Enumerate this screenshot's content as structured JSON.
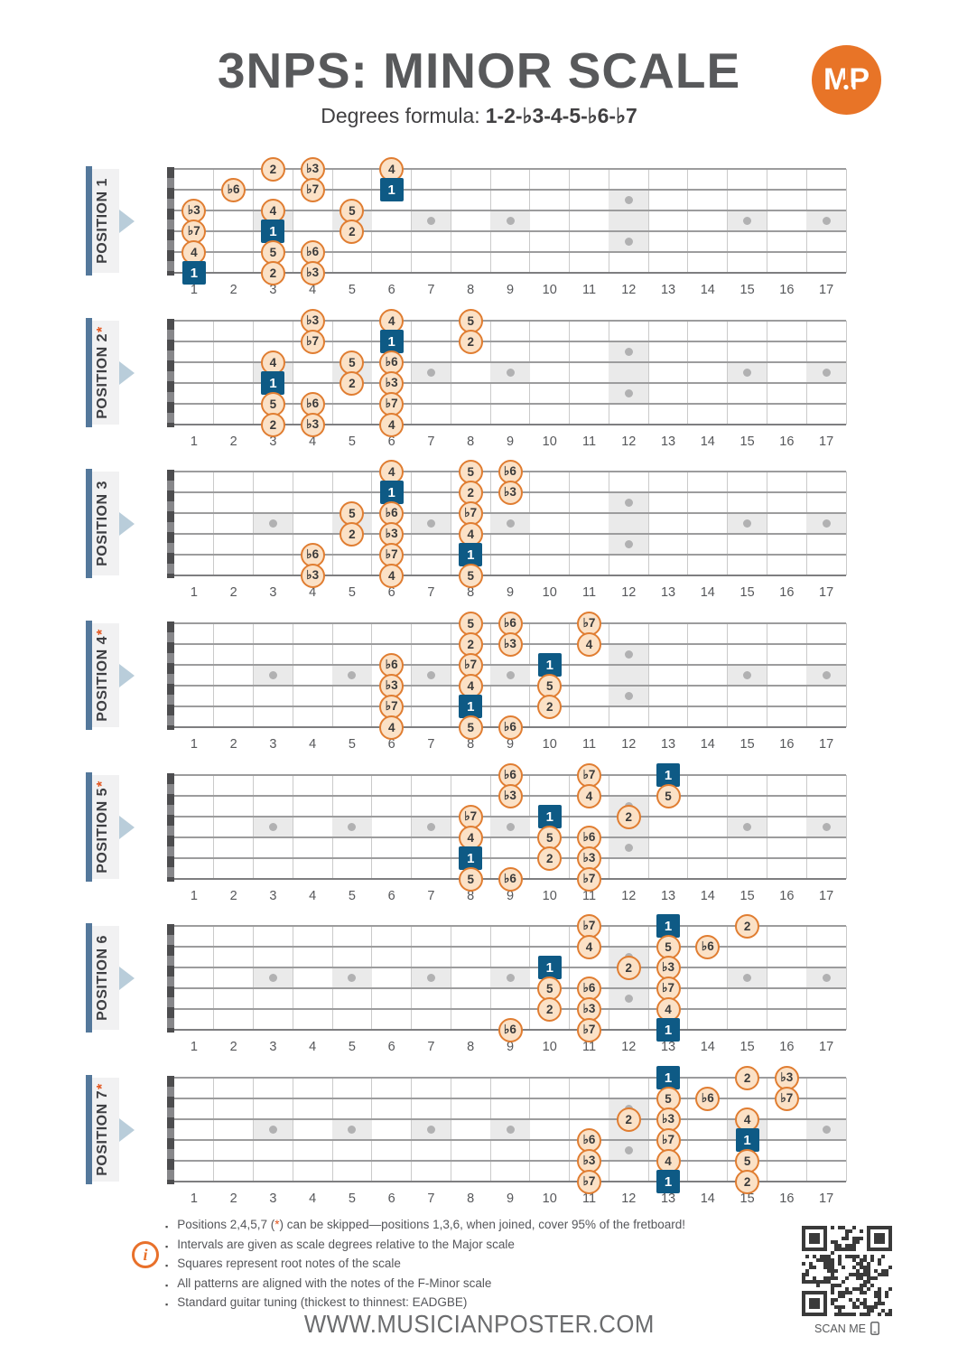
{
  "header": {
    "title": "3NPS: MINOR SCALE",
    "subtitle_label": "Degrees formula:",
    "subtitle_formula": "1-2-♭3-4-5-♭6-♭7",
    "logo_text": "MP"
  },
  "colors": {
    "accent_orange": "#E8722C",
    "root_blue": "#0E5A85",
    "note_fill": "#FBE1C6",
    "note_border": "#E07D31",
    "label_bar_blue": "#54789B",
    "arrow_blue": "#B9CDDA",
    "title_gray": "#58595B"
  },
  "fretboard": {
    "string_count": 6,
    "fret_count": 17,
    "fret_numbers": [
      "1",
      "2",
      "3",
      "4",
      "5",
      "6",
      "7",
      "8",
      "9",
      "10",
      "11",
      "12",
      "13",
      "14",
      "15",
      "16",
      "17"
    ],
    "inlay_single_frets": [
      3,
      5,
      7,
      9,
      15,
      17
    ],
    "inlay_double_frets": [
      12
    ]
  },
  "positions": [
    {
      "label": "POSITION 1",
      "star": false,
      "notes": [
        {
          "s": 1,
          "f": 3,
          "d": "2",
          "r": false
        },
        {
          "s": 1,
          "f": 4,
          "d": "♭3",
          "r": false
        },
        {
          "s": 1,
          "f": 6,
          "d": "4",
          "r": false
        },
        {
          "s": 2,
          "f": 2,
          "d": "♭6",
          "r": false
        },
        {
          "s": 2,
          "f": 4,
          "d": "♭7",
          "r": false
        },
        {
          "s": 2,
          "f": 6,
          "d": "1",
          "r": true
        },
        {
          "s": 3,
          "f": 1,
          "d": "♭3",
          "r": false
        },
        {
          "s": 3,
          "f": 3,
          "d": "4",
          "r": false
        },
        {
          "s": 3,
          "f": 5,
          "d": "5",
          "r": false
        },
        {
          "s": 4,
          "f": 1,
          "d": "♭7",
          "r": false
        },
        {
          "s": 4,
          "f": 3,
          "d": "1",
          "r": true
        },
        {
          "s": 4,
          "f": 5,
          "d": "2",
          "r": false
        },
        {
          "s": 5,
          "f": 1,
          "d": "4",
          "r": false
        },
        {
          "s": 5,
          "f": 3,
          "d": "5",
          "r": false
        },
        {
          "s": 5,
          "f": 4,
          "d": "♭6",
          "r": false
        },
        {
          "s": 6,
          "f": 1,
          "d": "1",
          "r": true
        },
        {
          "s": 6,
          "f": 3,
          "d": "2",
          "r": false
        },
        {
          "s": 6,
          "f": 4,
          "d": "♭3",
          "r": false
        }
      ]
    },
    {
      "label": "POSITION 2",
      "star": true,
      "notes": [
        {
          "s": 1,
          "f": 4,
          "d": "♭3",
          "r": false
        },
        {
          "s": 1,
          "f": 6,
          "d": "4",
          "r": false
        },
        {
          "s": 1,
          "f": 8,
          "d": "5",
          "r": false
        },
        {
          "s": 2,
          "f": 4,
          "d": "♭7",
          "r": false
        },
        {
          "s": 2,
          "f": 6,
          "d": "1",
          "r": true
        },
        {
          "s": 2,
          "f": 8,
          "d": "2",
          "r": false
        },
        {
          "s": 3,
          "f": 3,
          "d": "4",
          "r": false
        },
        {
          "s": 3,
          "f": 5,
          "d": "5",
          "r": false
        },
        {
          "s": 3,
          "f": 6,
          "d": "♭6",
          "r": false
        },
        {
          "s": 4,
          "f": 3,
          "d": "1",
          "r": true
        },
        {
          "s": 4,
          "f": 5,
          "d": "2",
          "r": false
        },
        {
          "s": 4,
          "f": 6,
          "d": "♭3",
          "r": false
        },
        {
          "s": 5,
          "f": 3,
          "d": "5",
          "r": false
        },
        {
          "s": 5,
          "f": 4,
          "d": "♭6",
          "r": false
        },
        {
          "s": 5,
          "f": 6,
          "d": "♭7",
          "r": false
        },
        {
          "s": 6,
          "f": 3,
          "d": "2",
          "r": false
        },
        {
          "s": 6,
          "f": 4,
          "d": "♭3",
          "r": false
        },
        {
          "s": 6,
          "f": 6,
          "d": "4",
          "r": false
        }
      ]
    },
    {
      "label": "POSITION 3",
      "star": false,
      "notes": [
        {
          "s": 1,
          "f": 6,
          "d": "4",
          "r": false
        },
        {
          "s": 1,
          "f": 8,
          "d": "5",
          "r": false
        },
        {
          "s": 1,
          "f": 9,
          "d": "♭6",
          "r": false
        },
        {
          "s": 2,
          "f": 6,
          "d": "1",
          "r": true
        },
        {
          "s": 2,
          "f": 8,
          "d": "2",
          "r": false
        },
        {
          "s": 2,
          "f": 9,
          "d": "♭3",
          "r": false
        },
        {
          "s": 3,
          "f": 5,
          "d": "5",
          "r": false
        },
        {
          "s": 3,
          "f": 6,
          "d": "♭6",
          "r": false
        },
        {
          "s": 3,
          "f": 8,
          "d": "♭7",
          "r": false
        },
        {
          "s": 4,
          "f": 5,
          "d": "2",
          "r": false
        },
        {
          "s": 4,
          "f": 6,
          "d": "♭3",
          "r": false
        },
        {
          "s": 4,
          "f": 8,
          "d": "4",
          "r": false
        },
        {
          "s": 5,
          "f": 4,
          "d": "♭6",
          "r": false
        },
        {
          "s": 5,
          "f": 6,
          "d": "♭7",
          "r": false
        },
        {
          "s": 5,
          "f": 8,
          "d": "1",
          "r": true
        },
        {
          "s": 6,
          "f": 4,
          "d": "♭3",
          "r": false
        },
        {
          "s": 6,
          "f": 6,
          "d": "4",
          "r": false
        },
        {
          "s": 6,
          "f": 8,
          "d": "5",
          "r": false
        }
      ]
    },
    {
      "label": "POSITION 4",
      "star": true,
      "notes": [
        {
          "s": 1,
          "f": 8,
          "d": "5",
          "r": false
        },
        {
          "s": 1,
          "f": 9,
          "d": "♭6",
          "r": false
        },
        {
          "s": 1,
          "f": 11,
          "d": "♭7",
          "r": false
        },
        {
          "s": 2,
          "f": 8,
          "d": "2",
          "r": false
        },
        {
          "s": 2,
          "f": 9,
          "d": "♭3",
          "r": false
        },
        {
          "s": 2,
          "f": 11,
          "d": "4",
          "r": false
        },
        {
          "s": 3,
          "f": 6,
          "d": "♭6",
          "r": false
        },
        {
          "s": 3,
          "f": 8,
          "d": "♭7",
          "r": false
        },
        {
          "s": 3,
          "f": 10,
          "d": "1",
          "r": true
        },
        {
          "s": 4,
          "f": 6,
          "d": "♭3",
          "r": false
        },
        {
          "s": 4,
          "f": 8,
          "d": "4",
          "r": false
        },
        {
          "s": 4,
          "f": 10,
          "d": "5",
          "r": false
        },
        {
          "s": 5,
          "f": 6,
          "d": "♭7",
          "r": false
        },
        {
          "s": 5,
          "f": 8,
          "d": "1",
          "r": true
        },
        {
          "s": 5,
          "f": 10,
          "d": "2",
          "r": false
        },
        {
          "s": 6,
          "f": 6,
          "d": "4",
          "r": false
        },
        {
          "s": 6,
          "f": 8,
          "d": "5",
          "r": false
        },
        {
          "s": 6,
          "f": 9,
          "d": "♭6",
          "r": false
        }
      ]
    },
    {
      "label": "POSITION 5",
      "star": true,
      "notes": [
        {
          "s": 1,
          "f": 9,
          "d": "♭6",
          "r": false
        },
        {
          "s": 1,
          "f": 11,
          "d": "♭7",
          "r": false
        },
        {
          "s": 1,
          "f": 13,
          "d": "1",
          "r": true
        },
        {
          "s": 2,
          "f": 9,
          "d": "♭3",
          "r": false
        },
        {
          "s": 2,
          "f": 11,
          "d": "4",
          "r": false
        },
        {
          "s": 2,
          "f": 13,
          "d": "5",
          "r": false
        },
        {
          "s": 3,
          "f": 8,
          "d": "♭7",
          "r": false
        },
        {
          "s": 3,
          "f": 10,
          "d": "1",
          "r": true
        },
        {
          "s": 3,
          "f": 12,
          "d": "2",
          "r": false
        },
        {
          "s": 4,
          "f": 8,
          "d": "4",
          "r": false
        },
        {
          "s": 4,
          "f": 10,
          "d": "5",
          "r": false
        },
        {
          "s": 4,
          "f": 11,
          "d": "♭6",
          "r": false
        },
        {
          "s": 5,
          "f": 8,
          "d": "1",
          "r": true
        },
        {
          "s": 5,
          "f": 10,
          "d": "2",
          "r": false
        },
        {
          "s": 5,
          "f": 11,
          "d": "♭3",
          "r": false
        },
        {
          "s": 6,
          "f": 8,
          "d": "5",
          "r": false
        },
        {
          "s": 6,
          "f": 9,
          "d": "♭6",
          "r": false
        },
        {
          "s": 6,
          "f": 11,
          "d": "♭7",
          "r": false
        }
      ]
    },
    {
      "label": "POSITION 6",
      "star": false,
      "notes": [
        {
          "s": 1,
          "f": 11,
          "d": "♭7",
          "r": false
        },
        {
          "s": 1,
          "f": 13,
          "d": "1",
          "r": true
        },
        {
          "s": 1,
          "f": 15,
          "d": "2",
          "r": false
        },
        {
          "s": 2,
          "f": 11,
          "d": "4",
          "r": false
        },
        {
          "s": 2,
          "f": 13,
          "d": "5",
          "r": false
        },
        {
          "s": 2,
          "f": 14,
          "d": "♭6",
          "r": false
        },
        {
          "s": 3,
          "f": 10,
          "d": "1",
          "r": true
        },
        {
          "s": 3,
          "f": 12,
          "d": "2",
          "r": false
        },
        {
          "s": 3,
          "f": 13,
          "d": "♭3",
          "r": false
        },
        {
          "s": 4,
          "f": 10,
          "d": "5",
          "r": false
        },
        {
          "s": 4,
          "f": 11,
          "d": "♭6",
          "r": false
        },
        {
          "s": 4,
          "f": 13,
          "d": "♭7",
          "r": false
        },
        {
          "s": 5,
          "f": 10,
          "d": "2",
          "r": false
        },
        {
          "s": 5,
          "f": 11,
          "d": "♭3",
          "r": false
        },
        {
          "s": 5,
          "f": 13,
          "d": "4",
          "r": false
        },
        {
          "s": 6,
          "f": 9,
          "d": "♭6",
          "r": false
        },
        {
          "s": 6,
          "f": 11,
          "d": "♭7",
          "r": false
        },
        {
          "s": 6,
          "f": 13,
          "d": "1",
          "r": true
        }
      ]
    },
    {
      "label": "POSITION 7",
      "star": true,
      "notes": [
        {
          "s": 1,
          "f": 13,
          "d": "1",
          "r": true
        },
        {
          "s": 1,
          "f": 15,
          "d": "2",
          "r": false
        },
        {
          "s": 1,
          "f": 16,
          "d": "♭3",
          "r": false
        },
        {
          "s": 2,
          "f": 13,
          "d": "5",
          "r": false
        },
        {
          "s": 2,
          "f": 14,
          "d": "♭6",
          "r": false
        },
        {
          "s": 2,
          "f": 16,
          "d": "♭7",
          "r": false
        },
        {
          "s": 3,
          "f": 12,
          "d": "2",
          "r": false
        },
        {
          "s": 3,
          "f": 13,
          "d": "♭3",
          "r": false
        },
        {
          "s": 3,
          "f": 15,
          "d": "4",
          "r": false
        },
        {
          "s": 4,
          "f": 11,
          "d": "♭6",
          "r": false
        },
        {
          "s": 4,
          "f": 13,
          "d": "♭7",
          "r": false
        },
        {
          "s": 4,
          "f": 15,
          "d": "1",
          "r": true
        },
        {
          "s": 5,
          "f": 11,
          "d": "♭3",
          "r": false
        },
        {
          "s": 5,
          "f": 13,
          "d": "4",
          "r": false
        },
        {
          "s": 5,
          "f": 15,
          "d": "5",
          "r": false
        },
        {
          "s": 6,
          "f": 11,
          "d": "♭7",
          "r": false
        },
        {
          "s": 6,
          "f": 13,
          "d": "1",
          "r": true
        },
        {
          "s": 6,
          "f": 15,
          "d": "2",
          "r": false
        }
      ]
    }
  ],
  "notes_panel": {
    "icon_letter": "i",
    "bullet_char": "▪",
    "bullets": [
      [
        {
          "t": "Positions 2,4,5,7 ("
        },
        {
          "t": "*",
          "accent": true
        },
        {
          "t": ") can be skipped—positions 1,3,6, when joined, cover 95% of the fretboard!"
        }
      ],
      [
        {
          "t": "Intervals are given as scale degrees relative to the Major scale"
        }
      ],
      [
        {
          "t": "Squares represent root notes of the scale"
        }
      ],
      [
        {
          "t": "All patterns are aligned with the notes of the F-Minor scale"
        }
      ],
      [
        {
          "t": "Standard guitar tuning (thickest to thinnest: EADGBE)"
        }
      ]
    ]
  },
  "footer": {
    "website": "WWW.MUSICIANPOSTER.COM",
    "scan_label": "SCAN ME"
  }
}
